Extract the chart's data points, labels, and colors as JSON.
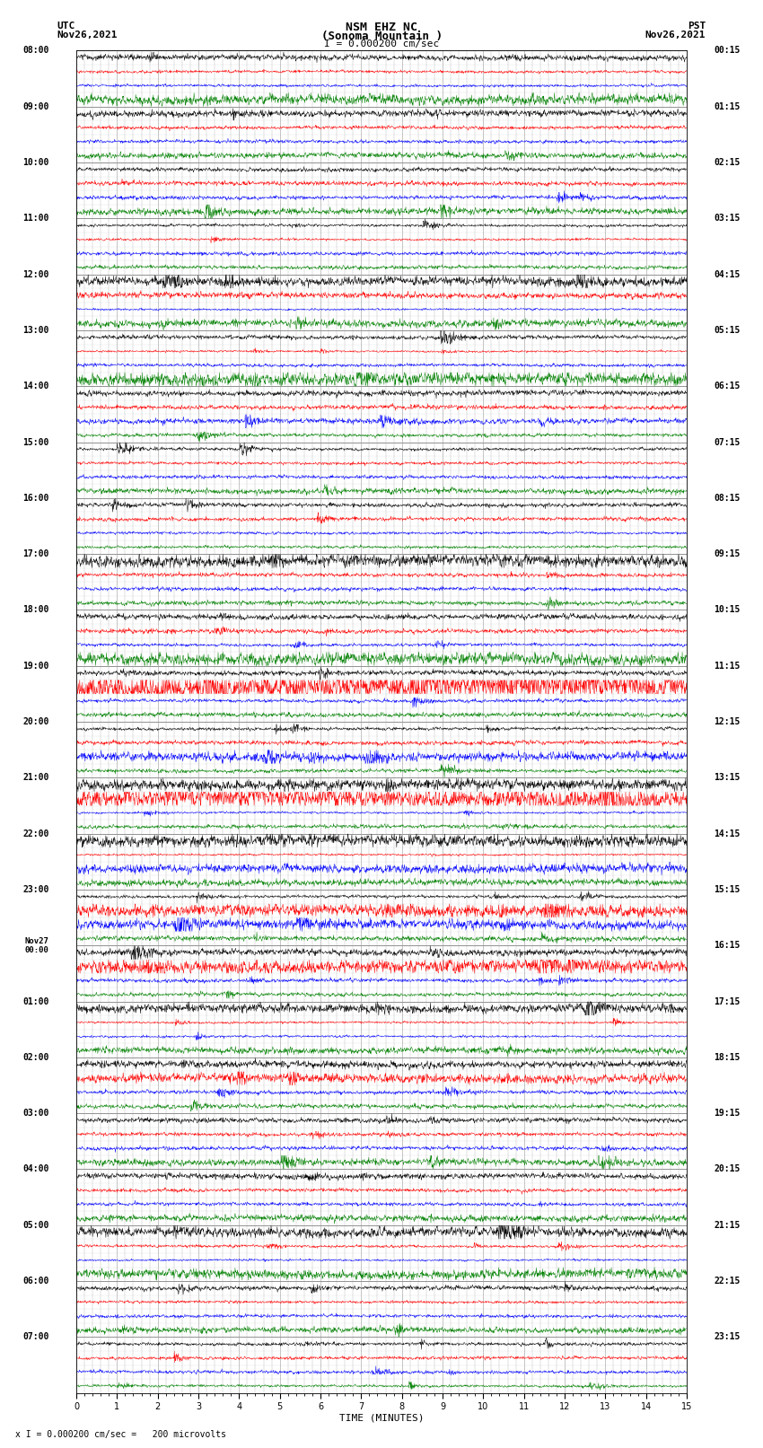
{
  "title_line1": "NSM EHZ NC",
  "title_line2": "(Sonoma Mountain )",
  "title_line3": "I = 0.000200 cm/sec",
  "left_header_line1": "UTC",
  "left_header_line2": "Nov26,2021",
  "right_header_line1": "PST",
  "right_header_line2": "Nov26,2021",
  "footer": "x I = 0.000200 cm/sec =   200 microvolts",
  "xlabel": "TIME (MINUTES)",
  "trace_colors": [
    "black",
    "red",
    "blue",
    "green"
  ],
  "utc_label_times": [
    "08:00",
    "09:00",
    "10:00",
    "11:00",
    "12:00",
    "13:00",
    "14:00",
    "15:00",
    "16:00",
    "17:00",
    "18:00",
    "19:00",
    "20:00",
    "21:00",
    "22:00",
    "23:00",
    "Nov27\n00:00",
    "01:00",
    "02:00",
    "03:00",
    "04:00",
    "05:00",
    "06:00",
    "07:00"
  ],
  "pst_label_times": [
    "00:15",
    "01:15",
    "02:15",
    "03:15",
    "04:15",
    "05:15",
    "06:15",
    "07:15",
    "08:15",
    "09:15",
    "10:15",
    "11:15",
    "12:15",
    "13:15",
    "14:15",
    "15:15",
    "16:15",
    "17:15",
    "18:15",
    "19:15",
    "20:15",
    "21:15",
    "22:15",
    "23:15"
  ],
  "num_hours": 24,
  "traces_per_hour": 4,
  "x_min": 0,
  "x_max": 15,
  "background_color": "white",
  "grid_color": "#999999",
  "seed": 12345
}
